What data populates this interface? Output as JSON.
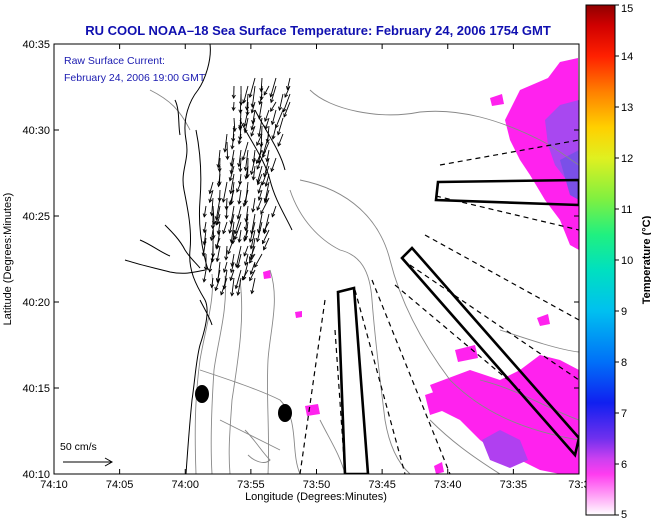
{
  "title": "RU COOL  NOAA–18  Sea Surface Temperature:  February 24, 2006 1754 GMT",
  "annotation": {
    "line1": "Raw Surface Current:",
    "line2": "February 24, 2006 19:00 GMT"
  },
  "axes": {
    "xlabel": "Longitude (Degrees:Minutes)",
    "ylabel": "Latitude (Degrees:Minutes)",
    "x_ticks": [
      "74:10",
      "74:05",
      "74:00",
      "73:55",
      "73:50",
      "73:45",
      "73:40",
      "73:35",
      "73:3"
    ],
    "y_ticks": [
      "40:35",
      "40:30",
      "40:25",
      "40:20",
      "40:15",
      "40:10"
    ]
  },
  "scale_bar": {
    "label": "50 cm/s"
  },
  "colorbar": {
    "label": "Temperature (°C)",
    "ticks": [
      "15",
      "14",
      "13",
      "12",
      "11",
      "10",
      "9",
      "8",
      "7",
      "6",
      "5"
    ],
    "min": 5,
    "max": 15
  },
  "colors": {
    "title": "#1010b0",
    "annotation": "#1a1ab0",
    "sst_warm": "#ff22ee",
    "sst_cool": "#b040f0",
    "coast": "#000000",
    "bathymetry": "#888888"
  }
}
